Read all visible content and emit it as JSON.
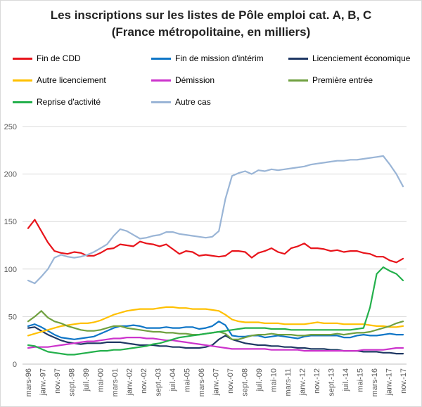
{
  "chart_data": {
    "type": "line",
    "title_line1": "Les inscriptions  sur les listes de Pôle emploi cat. A, B, C",
    "title_line2": "(France métropolitaine,  en milliers)",
    "xlabel": "",
    "ylabel": "",
    "ylim": [
      0,
      250
    ],
    "yticks": [
      0,
      50,
      100,
      150,
      200,
      250
    ],
    "grid": true,
    "legend_position": "top",
    "x_ticks": [
      "mars-96",
      "janv.-97",
      "nov.-97",
      "sept.-98",
      "juil.-99",
      "mai-00",
      "mars-01",
      "janv.-02",
      "nov.-02",
      "sept.-03",
      "juil.-04",
      "mai-05",
      "mars-06",
      "janv.-07",
      "nov.-07",
      "sept.-08",
      "juil.-09",
      "mai-10",
      "mars-11",
      "janv.-12",
      "nov.-12",
      "sept.-13",
      "juil.-14",
      "mai-15",
      "mars-16",
      "janv.-17",
      "nov.-17"
    ],
    "series": [
      {
        "name": "Fin de CDD",
        "color": "#e8141b",
        "values": [
          143,
          152,
          140,
          128,
          119,
          117,
          116,
          118,
          117,
          114,
          114,
          117,
          121,
          122,
          126,
          125,
          124,
          129,
          127,
          126,
          124,
          126,
          121,
          116,
          119,
          118,
          114,
          115,
          114,
          113,
          114,
          119,
          119,
          118,
          112,
          117,
          119,
          122,
          118,
          116,
          122,
          124,
          127,
          122,
          122,
          121,
          119,
          120,
          118,
          119,
          119,
          117,
          116,
          113,
          113,
          109,
          107,
          111
        ]
      },
      {
        "name": "Fin de mission d'intérim",
        "color": "#0f76c7",
        "values": [
          40,
          42,
          39,
          35,
          31,
          28,
          27,
          26,
          27,
          28,
          29,
          32,
          35,
          38,
          40,
          40,
          41,
          40,
          38,
          38,
          38,
          39,
          38,
          38,
          39,
          39,
          37,
          38,
          40,
          45,
          41,
          30,
          29,
          29,
          30,
          30,
          28,
          29,
          30,
          29,
          28,
          27,
          29,
          30,
          30,
          30,
          30,
          30,
          28,
          28,
          30,
          31,
          30,
          30,
          31,
          32,
          31,
          31
        ]
      },
      {
        "name": "Licenciement économique",
        "color": "#1f3864",
        "values": [
          38,
          39,
          35,
          31,
          28,
          25,
          23,
          22,
          21,
          22,
          22,
          22,
          23,
          23,
          23,
          22,
          21,
          20,
          20,
          20,
          19,
          19,
          18,
          18,
          17,
          17,
          17,
          18,
          20,
          26,
          30,
          26,
          24,
          22,
          21,
          20,
          20,
          19,
          19,
          18,
          18,
          17,
          17,
          16,
          16,
          16,
          15,
          15,
          14,
          14,
          14,
          13,
          13,
          13,
          12,
          12,
          11,
          11
        ]
      },
      {
        "name": "Autre licenciement",
        "color": "#ffc000",
        "values": [
          30,
          32,
          34,
          36,
          38,
          40,
          41,
          42,
          43,
          43,
          44,
          46,
          49,
          52,
          54,
          56,
          57,
          58,
          58,
          58,
          59,
          60,
          60,
          59,
          59,
          58,
          58,
          58,
          57,
          56,
          52,
          47,
          45,
          44,
          44,
          44,
          43,
          43,
          43,
          42,
          42,
          42,
          42,
          43,
          44,
          43,
          43,
          43,
          42,
          42,
          42,
          42,
          41,
          40,
          40,
          39,
          39,
          40
        ]
      },
      {
        "name": "Démission",
        "color": "#cc33cc",
        "values": [
          17,
          18,
          18,
          18,
          19,
          20,
          21,
          22,
          23,
          24,
          24,
          25,
          26,
          27,
          27,
          28,
          28,
          28,
          27,
          27,
          26,
          25,
          25,
          24,
          23,
          22,
          21,
          20,
          19,
          18,
          17,
          16,
          16,
          16,
          16,
          16,
          16,
          15,
          15,
          15,
          15,
          15,
          14,
          14,
          14,
          14,
          14,
          14,
          14,
          14,
          14,
          15,
          15,
          15,
          15,
          16,
          17,
          17
        ]
      },
      {
        "name": "Première entrée",
        "color": "#70a040",
        "values": [
          45,
          50,
          56,
          49,
          45,
          43,
          40,
          38,
          36,
          35,
          35,
          36,
          38,
          40,
          40,
          38,
          37,
          36,
          35,
          34,
          34,
          33,
          33,
          32,
          32,
          31,
          31,
          32,
          33,
          34,
          32,
          26,
          26,
          28,
          30,
          31,
          31,
          32,
          31,
          31,
          31,
          30,
          30,
          31,
          31,
          31,
          31,
          32,
          31,
          32,
          33,
          33,
          34,
          36,
          38,
          40,
          43,
          45
        ]
      },
      {
        "name": "Reprise d'activité",
        "color": "#24b04c",
        "values": [
          20,
          19,
          16,
          13,
          12,
          11,
          10,
          10,
          11,
          12,
          13,
          14,
          14,
          15,
          15,
          16,
          17,
          18,
          19,
          21,
          22,
          24,
          26,
          28,
          29,
          30,
          31,
          32,
          33,
          34,
          35,
          36,
          37,
          38,
          38,
          38,
          38,
          37,
          37,
          37,
          36,
          36,
          36,
          36,
          36,
          36,
          36,
          36,
          36,
          36,
          37,
          38,
          60,
          95,
          102,
          98,
          95,
          88
        ]
      },
      {
        "name": "Autre cas",
        "color": "#9ab5d6",
        "values": [
          88,
          85,
          92,
          100,
          112,
          115,
          113,
          112,
          113,
          115,
          118,
          122,
          126,
          135,
          142,
          140,
          136,
          132,
          133,
          135,
          136,
          139,
          139,
          137,
          136,
          135,
          134,
          133,
          134,
          140,
          174,
          198,
          201,
          203,
          200,
          204,
          203,
          205,
          204,
          205,
          206,
          207,
          208,
          210,
          211,
          212,
          213,
          214,
          214,
          215,
          215,
          216,
          217,
          218,
          219,
          210,
          200,
          187
        ]
      }
    ]
  }
}
